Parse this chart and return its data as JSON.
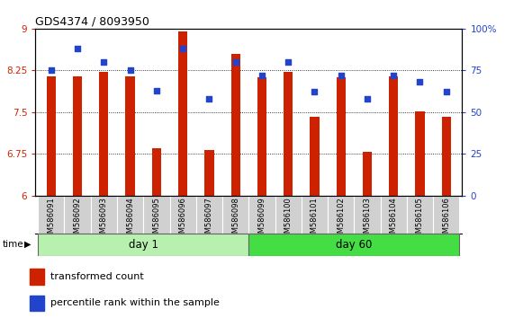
{
  "title": "GDS4374 / 8093950",
  "categories": [
    "GSM586091",
    "GSM586092",
    "GSM586093",
    "GSM586094",
    "GSM586095",
    "GSM586096",
    "GSM586097",
    "GSM586098",
    "GSM586099",
    "GSM586100",
    "GSM586101",
    "GSM586102",
    "GSM586103",
    "GSM586104",
    "GSM586105",
    "GSM586106"
  ],
  "bar_values": [
    8.15,
    8.15,
    8.22,
    8.15,
    6.85,
    8.95,
    6.82,
    8.55,
    8.12,
    8.22,
    7.42,
    8.12,
    6.78,
    8.15,
    7.52,
    7.42
  ],
  "dot_percentiles": [
    75,
    88,
    80,
    75,
    63,
    88,
    58,
    80,
    72,
    80,
    62,
    72,
    58,
    72,
    68,
    62
  ],
  "bar_color": "#cc2200",
  "dot_color": "#2244cc",
  "ylim_left": [
    6,
    9
  ],
  "ylim_right": [
    0,
    100
  ],
  "yticks_left": [
    6,
    6.75,
    7.5,
    8.25,
    9
  ],
  "yticks_right": [
    0,
    25,
    50,
    75,
    100
  ],
  "ytick_labels_left": [
    "6",
    "6.75",
    "7.5",
    "8.25",
    "9"
  ],
  "ytick_labels_right": [
    "0",
    "25",
    "50",
    "75",
    "100%"
  ],
  "grid_values": [
    6.75,
    7.5,
    8.25
  ],
  "day1_label": "day 1",
  "day60_label": "day 60",
  "day1_indices": [
    0,
    7
  ],
  "day60_indices": [
    8,
    15
  ],
  "time_label": "time",
  "legend_bar": "transformed count",
  "legend_dot": "percentile rank within the sample",
  "bar_width": 0.35,
  "bar_color_dark": "#aa1100",
  "day1_color": "#b8f0b0",
  "day60_color": "#44dd44",
  "tick_bg_color": "#d0d0d0"
}
